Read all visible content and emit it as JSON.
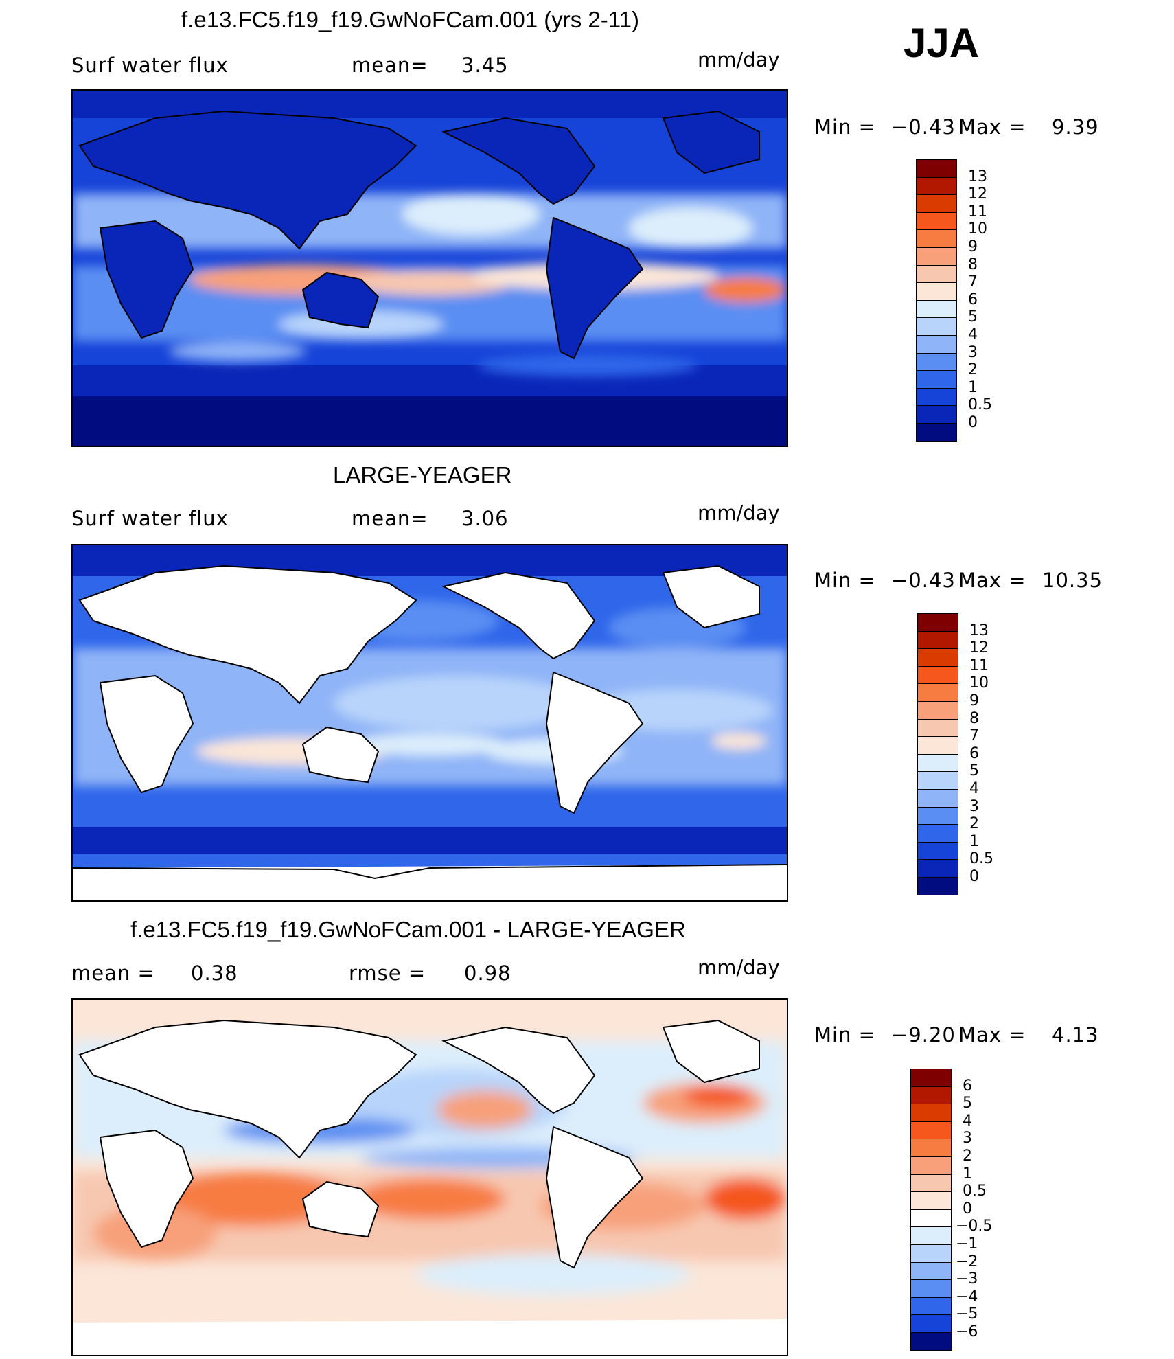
{
  "season": "JJA",
  "panels": [
    {
      "id": "control",
      "title": "f.e13.FC5.f19_f19.GwNoFCam.001 (yrs 2-11)",
      "left_label": "Surf water flux",
      "mid_label": "mean=",
      "mid_value": "3.45",
      "units": "mm/day",
      "min_label": "Min =",
      "min_value": "−0.43",
      "max_label": "Max =",
      "max_value": "9.39",
      "land_masked": false,
      "colorbar": {
        "labels": [
          "13",
          "12",
          "11",
          "10",
          "9",
          "8",
          "7",
          "6",
          "5",
          "4",
          "3",
          "2",
          "1",
          "0.5",
          "0"
        ],
        "colors": [
          "#7f0000",
          "#b21800",
          "#d93b00",
          "#f5571c",
          "#f77c42",
          "#f7a07a",
          "#f7c7b0",
          "#fbe6d8",
          "#dceefb",
          "#b8d4fb",
          "#8fb4f7",
          "#5a8ef2",
          "#2f66ea",
          "#1643d8",
          "#0a26b8",
          "#000c80"
        ]
      }
    },
    {
      "id": "obs",
      "title": "LARGE-YEAGER",
      "left_label": "Surf water flux",
      "mid_label": "mean=",
      "mid_value": "3.06",
      "units": "mm/day",
      "min_label": "Min =",
      "min_value": "−0.43",
      "max_label": "Max =",
      "max_value": "10.35",
      "land_masked": true,
      "colorbar": {
        "labels": [
          "13",
          "12",
          "11",
          "10",
          "9",
          "8",
          "7",
          "6",
          "5",
          "4",
          "3",
          "2",
          "1",
          "0.5",
          "0"
        ],
        "colors": [
          "#7f0000",
          "#b21800",
          "#d93b00",
          "#f5571c",
          "#f77c42",
          "#f7a07a",
          "#f7c7b0",
          "#fbe6d8",
          "#dceefb",
          "#b8d4fb",
          "#8fb4f7",
          "#5a8ef2",
          "#2f66ea",
          "#1643d8",
          "#0a26b8",
          "#000c80"
        ]
      }
    },
    {
      "id": "diff",
      "title": "f.e13.FC5.f19_f19.GwNoFCam.001 - LARGE-YEAGER",
      "left_label": "mean =",
      "left_value": "0.38",
      "mid_label": "rmse =",
      "mid_value": "0.98",
      "units": "mm/day",
      "min_label": "Min =",
      "min_value": "−9.20",
      "max_label": "Max =",
      "max_value": "4.13",
      "land_masked": true,
      "colorbar": {
        "labels": [
          "6",
          "5",
          "4",
          "3",
          "2",
          "1",
          "0.5",
          "0",
          "−0.5",
          "−1",
          "−2",
          "−3",
          "−4",
          "−5",
          "−6"
        ],
        "colors": [
          "#7f0000",
          "#b21800",
          "#d93b00",
          "#f5571c",
          "#f77c42",
          "#f7a07a",
          "#f7c7b0",
          "#fbe6d8",
          "#ffffff",
          "#dceefb",
          "#b8d4fb",
          "#8fb4f7",
          "#5a8ef2",
          "#2f66ea",
          "#1643d8",
          "#000c80"
        ]
      }
    }
  ]
}
